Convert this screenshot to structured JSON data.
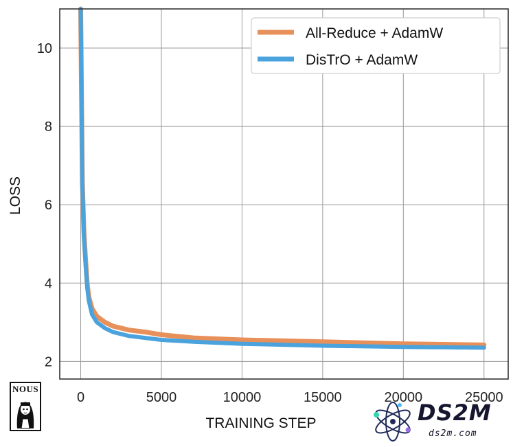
{
  "chart_data": {
    "type": "line",
    "xlabel": "TRAINING STEP",
    "ylabel": "LOSS",
    "xlim": [
      -1300,
      26500
    ],
    "ylim": [
      1.55,
      11.0
    ],
    "xticks": [
      0,
      5000,
      10000,
      15000,
      20000,
      25000
    ],
    "xtick_labels": [
      "0",
      "5000",
      "10000",
      "15000",
      "20000",
      "25000"
    ],
    "yticks": [
      2,
      4,
      6,
      8,
      10
    ],
    "ytick_labels": [
      "2",
      "4",
      "6",
      "8",
      "10"
    ],
    "grid": true,
    "legend_position": "top-right",
    "series": [
      {
        "name": "All-Reduce + AdamW",
        "color": "#e8905a",
        "x": [
          0,
          100,
          200,
          300,
          400,
          500,
          700,
          1000,
          1500,
          2000,
          3000,
          4000,
          5000,
          7000,
          10000,
          15000,
          20000,
          25000
        ],
        "y": [
          11.0,
          6.6,
          5.3,
          4.6,
          4.0,
          3.65,
          3.35,
          3.15,
          3.0,
          2.9,
          2.8,
          2.75,
          2.68,
          2.6,
          2.55,
          2.5,
          2.45,
          2.42
        ]
      },
      {
        "name": "DisTrO + AdamW",
        "color": "#4aa3dd",
        "x": [
          0,
          100,
          200,
          300,
          400,
          500,
          700,
          1000,
          1500,
          2000,
          3000,
          4000,
          5000,
          7000,
          10000,
          15000,
          20000,
          25000
        ],
        "y": [
          11.0,
          6.5,
          5.2,
          4.5,
          3.9,
          3.55,
          3.2,
          3.0,
          2.85,
          2.75,
          2.65,
          2.6,
          2.55,
          2.5,
          2.45,
          2.4,
          2.37,
          2.35
        ]
      }
    ]
  },
  "logo": {
    "text": "NOUS"
  },
  "watermark": {
    "title": "DS2M",
    "subtitle": "ds2m.com"
  }
}
